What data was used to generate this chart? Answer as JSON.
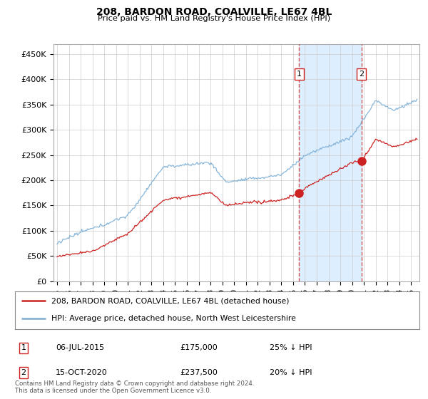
{
  "title": "208, BARDON ROAD, COALVILLE, LE67 4BL",
  "subtitle": "Price paid vs. HM Land Registry's House Price Index (HPI)",
  "hpi_color": "#7aaed6",
  "price_color": "#cc2222",
  "background_color": "#ffffff",
  "shaded_region_color": "#ddeeff",
  "grid_color": "#cccccc",
  "ylim": [
    0,
    470000
  ],
  "yticks": [
    0,
    50000,
    100000,
    150000,
    200000,
    250000,
    300000,
    350000,
    400000,
    450000
  ],
  "ytick_labels": [
    "£0",
    "£50K",
    "£100K",
    "£150K",
    "£200K",
    "£250K",
    "£300K",
    "£350K",
    "£400K",
    "£450K"
  ],
  "xlim_start": 1994.7,
  "xlim_end": 2025.7,
  "xtick_years": [
    1995,
    1996,
    1997,
    1998,
    1999,
    2000,
    2001,
    2002,
    2003,
    2004,
    2005,
    2006,
    2007,
    2008,
    2009,
    2010,
    2011,
    2012,
    2013,
    2014,
    2015,
    2016,
    2017,
    2018,
    2019,
    2020,
    2021,
    2022,
    2023,
    2024,
    2025
  ],
  "purchase1_x": 2015.51,
  "purchase1_y": 175000,
  "purchase1_label": "1",
  "purchase1_date": "06-JUL-2015",
  "purchase1_price": "£175,000",
  "purchase1_note": "25% ↓ HPI",
  "purchase2_x": 2020.79,
  "purchase2_y": 237500,
  "purchase2_label": "2",
  "purchase2_date": "15-OCT-2020",
  "purchase2_price": "£237,500",
  "purchase2_note": "20% ↓ HPI",
  "legend_line1": "208, BARDON ROAD, COALVILLE, LE67 4BL (detached house)",
  "legend_line2": "HPI: Average price, detached house, North West Leicestershire",
  "footnote": "Contains HM Land Registry data © Crown copyright and database right 2024.\nThis data is licensed under the Open Government Licence v3.0."
}
